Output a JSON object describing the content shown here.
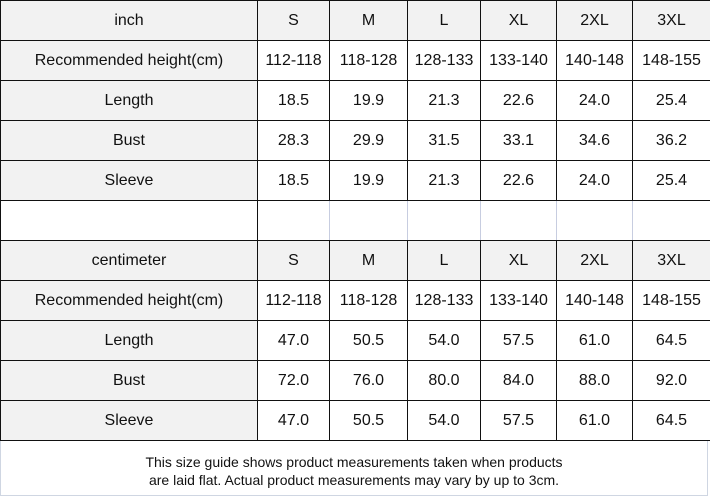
{
  "inch_table": {
    "header": [
      "inch",
      "S",
      "M",
      "L",
      "XL",
      "2XL",
      "3XL"
    ],
    "rows": [
      [
        "Recommended height(cm)",
        "112-118",
        "118-128",
        "128-133",
        "133-140",
        "140-148",
        "148-155"
      ],
      [
        "Length",
        "18.5",
        "19.9",
        "21.3",
        "22.6",
        "24.0",
        "25.4"
      ],
      [
        "Bust",
        "28.3",
        "29.9",
        "31.5",
        "33.1",
        "34.6",
        "36.2"
      ],
      [
        "Sleeve",
        "18.5",
        "19.9",
        "21.3",
        "22.6",
        "24.0",
        "25.4"
      ]
    ]
  },
  "cm_table": {
    "header": [
      "centimeter",
      "S",
      "M",
      "L",
      "XL",
      "2XL",
      "3XL"
    ],
    "rows": [
      [
        "Recommended height(cm)",
        "112-118",
        "118-128",
        "128-133",
        "133-140",
        "140-148",
        "148-155"
      ],
      [
        "Length",
        "47.0",
        "50.5",
        "54.0",
        "57.5",
        "61.0",
        "64.5"
      ],
      [
        "Bust",
        "72.0",
        "76.0",
        "80.0",
        "84.0",
        "88.0",
        "92.0"
      ],
      [
        "Sleeve",
        "47.0",
        "50.5",
        "54.0",
        "57.5",
        "61.0",
        "64.5"
      ]
    ]
  },
  "caption": {
    "line1": "This size guide shows product measurements taken when products",
    "line2": "are laid flat. Actual product measurements may vary by up to 3cm."
  }
}
